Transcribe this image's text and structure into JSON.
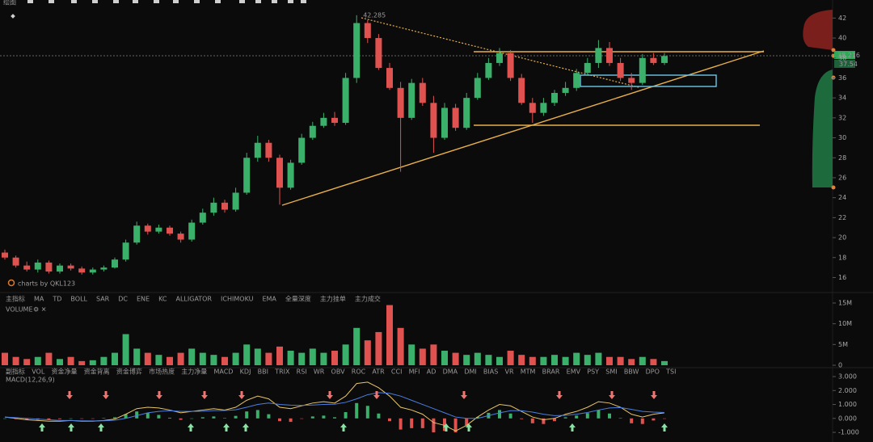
{
  "toolbar": {
    "label": "绘图"
  },
  "main_indicators": [
    "主指标",
    "MA",
    "TD",
    "BOLL",
    "SAR",
    "DC",
    "ENE",
    "KC",
    "ALLIGATOR",
    "ICHIMOKU",
    "EMA",
    "全量深度",
    "主力挂单",
    "主力成交"
  ],
  "sub_indicators": [
    "副指标",
    "VOL",
    "资金净量",
    "资金背离",
    "资金博弈",
    "市场热度",
    "主力净量",
    "MACD",
    "KDJ",
    "BBI",
    "TRIX",
    "RSI",
    "WR",
    "OBV",
    "ROC",
    "ATR",
    "CCI",
    "MFI",
    "AD",
    "DMA",
    "DMI",
    "BIAS",
    "VR",
    "MTM",
    "BRAR",
    "EMV",
    "PSY",
    "SMI",
    "BBW",
    "DPO",
    "TSI"
  ],
  "chart_data": [
    {
      "type": "candlestick",
      "watermark": "charts by QKL123",
      "high_label": "42.285",
      "last_price_label": "38.216",
      "prev_label": "37.54",
      "up_color": "#3bb06b",
      "down_color": "#e0524f",
      "open": [
        18.5,
        18,
        17.2,
        16.8,
        17.5,
        16.6,
        17.2,
        16.9,
        16.5,
        16.8,
        17,
        17.8,
        19.5,
        21.2,
        20.6,
        21,
        20.4,
        19.8,
        21.5,
        22.5,
        23.5,
        22.8,
        24.5,
        28,
        29.5,
        28,
        25,
        27.5,
        30,
        31.2,
        32,
        31.5,
        36,
        41.5,
        40,
        37,
        35,
        32,
        35.5,
        33.5,
        30,
        33,
        31,
        34,
        36,
        37.5,
        38.5,
        36,
        33.5,
        32.5,
        33.5,
        34.5,
        35,
        36.5,
        37.5,
        39,
        37.5,
        36,
        35.5,
        38,
        37.5
      ],
      "high": [
        18.8,
        18.2,
        17.6,
        17.8,
        17.7,
        17.4,
        17.4,
        17.1,
        17,
        17.2,
        18,
        19.8,
        21.6,
        21.4,
        21.3,
        21.2,
        20.6,
        21.8,
        22.9,
        24,
        23.8,
        25,
        28.5,
        30.2,
        29.8,
        28.3,
        27.8,
        30.4,
        31.6,
        32.5,
        32.6,
        36.5,
        42.285,
        41.8,
        40.4,
        37.5,
        35.6,
        35.9,
        36,
        34.2,
        33.5,
        33.4,
        34.5,
        36.5,
        38,
        39,
        38.8,
        36.4,
        34,
        34,
        34.8,
        35.6,
        36.9,
        38,
        39.8,
        39.6,
        38,
        36.5,
        38.4,
        38.5,
        38.5
      ],
      "low": [
        17.8,
        17,
        16.6,
        16.5,
        16.4,
        16.4,
        16.7,
        16.3,
        16.3,
        16.6,
        16.9,
        17.6,
        19.3,
        20.3,
        20.4,
        20.2,
        19.5,
        19.6,
        21.3,
        22.2,
        22.5,
        22.6,
        24.3,
        27.6,
        27.6,
        23.3,
        24.8,
        27.3,
        29.8,
        31,
        31.2,
        31.3,
        35.5,
        39.5,
        36.8,
        34.8,
        26.6,
        31.8,
        33.2,
        28.5,
        29.8,
        30.7,
        30.8,
        33.8,
        35.8,
        37.2,
        35.7,
        33.3,
        31.5,
        32.2,
        33.2,
        34.2,
        34.7,
        36.2,
        37,
        37.2,
        35.7,
        34.8,
        35.3,
        37.3,
        37.3
      ],
      "close": [
        18,
        17.2,
        16.8,
        17.5,
        16.6,
        17.2,
        16.9,
        16.5,
        16.8,
        17,
        17.8,
        19.5,
        21.2,
        20.6,
        21,
        20.4,
        19.8,
        21.5,
        22.5,
        23.5,
        22.8,
        24.5,
        28,
        29.5,
        28,
        25,
        27.5,
        30,
        31.2,
        32,
        31.5,
        36,
        41.5,
        40,
        37,
        35,
        32,
        35.5,
        33.5,
        30,
        33,
        31,
        34,
        36,
        37.5,
        38.5,
        36,
        33.5,
        32.5,
        33.5,
        34.5,
        35,
        36.5,
        37.5,
        39,
        37.5,
        36,
        35.5,
        38,
        37.5,
        38.2
      ],
      "ylim": [
        15,
        43
      ],
      "yticks": [
        16,
        18,
        20,
        22,
        24,
        26,
        28,
        30,
        32,
        34,
        36,
        38,
        40,
        42
      ]
    },
    {
      "type": "bar",
      "title": "VOLUME",
      "values": [
        3,
        2,
        1.5,
        2,
        3,
        1.5,
        2,
        1,
        1.2,
        2,
        3,
        7.5,
        4,
        3,
        2.5,
        2,
        3,
        4,
        3,
        2.5,
        2,
        3,
        5,
        4,
        3,
        4.5,
        3.5,
        3,
        4,
        3,
        3.5,
        5,
        9,
        6,
        8,
        14.5,
        9,
        5,
        4,
        5,
        3.5,
        3,
        2.5,
        3,
        2.5,
        2,
        3.5,
        2.5,
        2,
        2,
        2.5,
        2,
        3,
        2.5,
        3,
        2,
        2,
        1.5,
        2,
        1.5,
        1
      ],
      "ylim": [
        0,
        15
      ],
      "yticks": [
        0,
        {
          "value": 5,
          "label": "5M"
        },
        {
          "value": 10,
          "label": "10M"
        },
        {
          "value": 15,
          "label": "15M"
        }
      ]
    },
    {
      "type": "macd",
      "title": "MACD(12,26,9)",
      "dif_color": "#e8c468",
      "dea_color": "#4a7fe0",
      "up_color": "#3bb06b",
      "down_color": "#e0524f",
      "dif": [
        0.1,
        0,
        -0.1,
        -0.15,
        -0.2,
        -0.2,
        -0.15,
        -0.2,
        -0.2,
        -0.15,
        -0.05,
        0.3,
        0.7,
        0.8,
        0.75,
        0.6,
        0.4,
        0.5,
        0.6,
        0.7,
        0.6,
        0.8,
        1.3,
        1.6,
        1.4,
        0.8,
        0.7,
        0.9,
        1.1,
        1.2,
        1.1,
        1.6,
        2.5,
        2.6,
        2.2,
        1.6,
        0.8,
        0.6,
        0.3,
        -0.3,
        -0.5,
        -0.9,
        -0.5,
        0.1,
        0.6,
        1,
        0.9,
        0.5,
        0.1,
        -0.1,
        0,
        0.3,
        0.5,
        0.8,
        1.2,
        1.1,
        0.8,
        0.3,
        0.1,
        0.3,
        0.4
      ],
      "dea": [
        0.1,
        0.05,
        0,
        -0.05,
        -0.1,
        -0.15,
        -0.15,
        -0.17,
        -0.18,
        -0.17,
        -0.13,
        0,
        0.2,
        0.4,
        0.5,
        0.55,
        0.5,
        0.5,
        0.52,
        0.56,
        0.57,
        0.62,
        0.8,
        1,
        1.1,
        1,
        0.95,
        0.93,
        0.96,
        1,
        1.02,
        1.15,
        1.4,
        1.7,
        1.85,
        1.8,
        1.6,
        1.3,
        1,
        0.7,
        0.4,
        0.1,
        0,
        0,
        0.2,
        0.4,
        0.55,
        0.55,
        0.45,
        0.3,
        0.2,
        0.22,
        0.3,
        0.42,
        0.6,
        0.75,
        0.78,
        0.65,
        0.5,
        0.45,
        0.42
      ],
      "hist": [
        0,
        -0.05,
        -0.1,
        -0.1,
        -0.1,
        -0.05,
        0,
        -0.03,
        -0.02,
        0.02,
        0.08,
        0.3,
        0.5,
        0.4,
        0.25,
        0.05,
        -0.1,
        0,
        0.08,
        0.14,
        0.03,
        0.18,
        0.5,
        0.6,
        0.3,
        -0.2,
        -0.25,
        -0.03,
        0.14,
        0.2,
        0.08,
        0.45,
        1.1,
        0.9,
        0.35,
        -0.2,
        -0.8,
        -0.7,
        -0.7,
        -1,
        -0.9,
        -1,
        -0.5,
        0.1,
        0.4,
        0.6,
        0.35,
        -0.05,
        -0.35,
        -0.4,
        -0.2,
        0.08,
        0.2,
        0.38,
        0.6,
        0.35,
        0.02,
        -0.35,
        -0.4,
        -0.15,
        -0.02
      ],
      "ylim": [
        -1.2,
        3.1
      ],
      "yticks": [
        {
          "value": -1,
          "label": "-1.000"
        },
        {
          "value": 0,
          "label": "0.000"
        },
        {
          "value": 1,
          "label": "1.000"
        },
        {
          "value": 2,
          "label": "2.000"
        },
        {
          "value": 3,
          "label": "3.000"
        }
      ]
    }
  ]
}
